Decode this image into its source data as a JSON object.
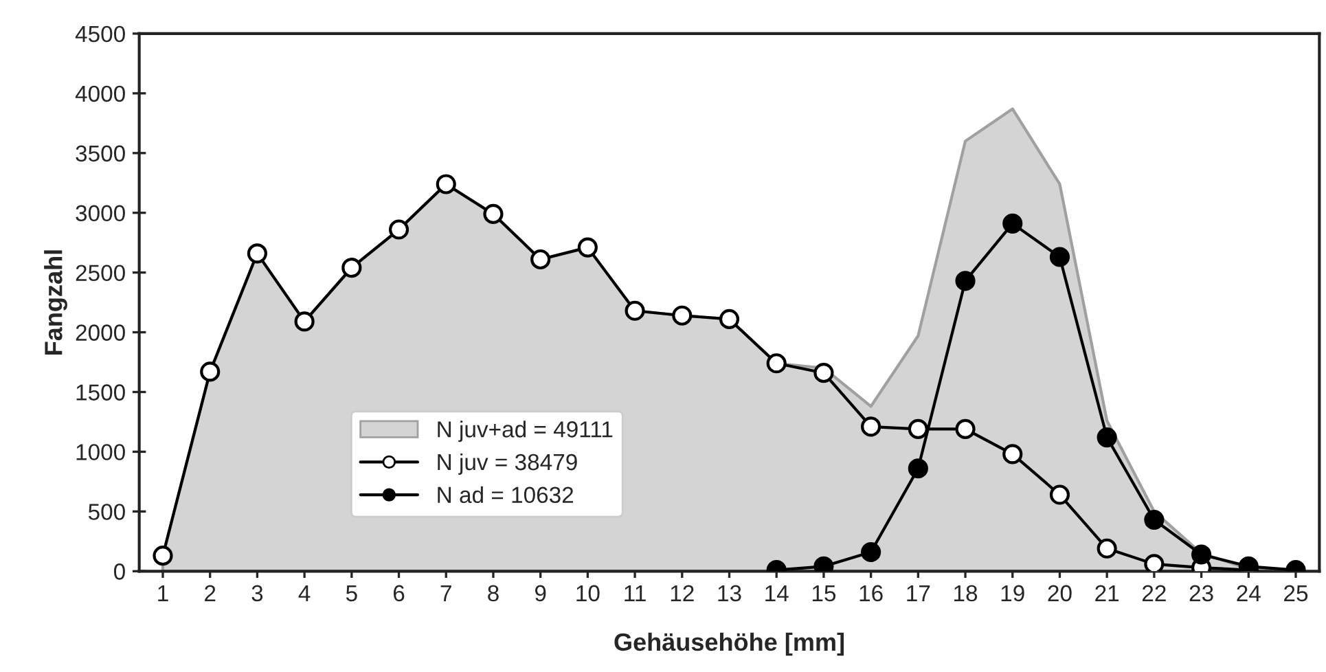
{
  "chart_data": {
    "type": "line",
    "xlabel": "Gehäusehöhe [mm]",
    "ylabel": "Fangzahl",
    "categories": [
      "1",
      "2",
      "3",
      "4",
      "5",
      "6",
      "7",
      "8",
      "9",
      "10",
      "11",
      "12",
      "13",
      "14",
      "15",
      "16",
      "17",
      "18",
      "19",
      "20",
      "21",
      "22",
      "23",
      "24",
      "25"
    ],
    "ylim": [
      0,
      4500
    ],
    "yticks": [
      0,
      500,
      1000,
      1500,
      2000,
      2500,
      3000,
      3500,
      4000,
      4500
    ],
    "grid": false,
    "legend": "left",
    "series": [
      {
        "name": "N juv+ad = 49111",
        "type": "area",
        "color": "#d4d4d4",
        "marker": "none",
        "values": [
          130,
          1670,
          2660,
          2090,
          2540,
          2860,
          3240,
          2990,
          2610,
          2710,
          2180,
          2140,
          2110,
          1740,
          1700,
          1380,
          1970,
          3600,
          3870,
          3240,
          1260,
          500,
          150,
          20,
          0
        ]
      },
      {
        "name": "N juv = 38479",
        "color": "#000000",
        "marker": "circle",
        "colors": [
          "#ffffff",
          "#ffffff",
          "#ffffff",
          "#ffffff",
          "#ffffff",
          "#ffffff",
          "#ffffff",
          "#ffffff",
          "#ffffff",
          "#ffffff",
          "#ffffff",
          "#ffffff",
          "#ffffff",
          "#ffffff",
          "#ffffff",
          "#ffffff",
          "#ffffff",
          "#ffffff",
          "#ffffff",
          "#ffffff",
          "#ffffff",
          "#ffffff",
          "#ffffff",
          "#ffffff",
          null
        ],
        "values": [
          130,
          1670,
          2660,
          2090,
          2540,
          2860,
          3240,
          2990,
          2610,
          2710,
          2180,
          2140,
          2110,
          1740,
          1660,
          1210,
          1190,
          1190,
          980,
          640,
          190,
          60,
          30,
          10,
          null
        ]
      },
      {
        "name": "N ad = 10632",
        "color": "#000000",
        "marker": "circle",
        "values": [
          null,
          null,
          null,
          null,
          null,
          null,
          null,
          null,
          null,
          null,
          null,
          null,
          null,
          10,
          40,
          160,
          860,
          2430,
          2910,
          2630,
          1120,
          430,
          140,
          40,
          10
        ]
      }
    ]
  }
}
